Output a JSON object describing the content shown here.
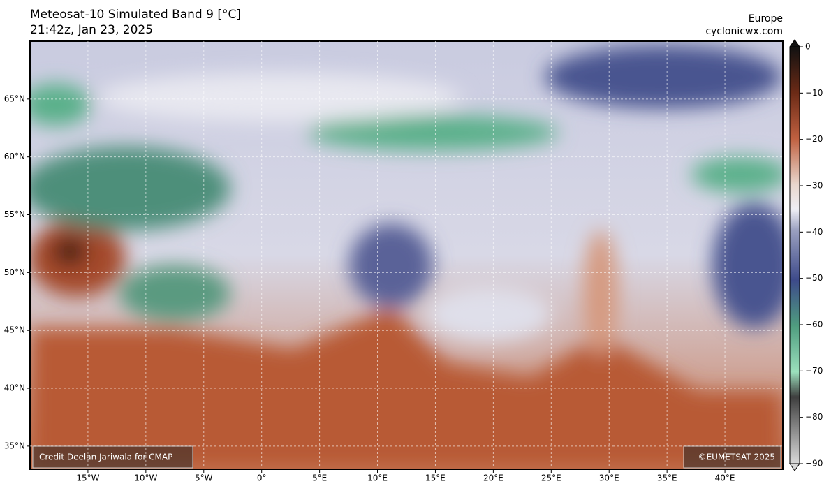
{
  "header": {
    "title": "Meteosat-10 Simulated Band 9 [°C]",
    "subtitle": "21:42z, Jan 23, 2025",
    "region": "Europe",
    "site": "cyclonicwx.com"
  },
  "map": {
    "xlim": [
      -20,
      45
    ],
    "ylim": [
      33,
      70
    ],
    "grid": true,
    "xticks": [
      {
        "value": -15,
        "label": "15°W"
      },
      {
        "value": -10,
        "label": "10°W"
      },
      {
        "value": -5,
        "label": "5°W"
      },
      {
        "value": 0,
        "label": "0°"
      },
      {
        "value": 5,
        "label": "5°E"
      },
      {
        "value": 10,
        "label": "10°E"
      },
      {
        "value": 15,
        "label": "15°E"
      },
      {
        "value": 20,
        "label": "20°E"
      },
      {
        "value": 25,
        "label": "25°E"
      },
      {
        "value": 30,
        "label": "30°E"
      },
      {
        "value": 35,
        "label": "35°E"
      },
      {
        "value": 40,
        "label": "40°E"
      }
    ],
    "yticks": [
      {
        "value": 35,
        "label": "35°N"
      },
      {
        "value": 40,
        "label": "40°N"
      },
      {
        "value": 45,
        "label": "45°N"
      },
      {
        "value": 50,
        "label": "50°N"
      },
      {
        "value": 55,
        "label": "55°N"
      },
      {
        "value": 60,
        "label": "60°N"
      },
      {
        "value": 65,
        "label": "65°N"
      }
    ]
  },
  "colorbar": {
    "lim": [
      -90,
      0
    ],
    "ticks": [
      0,
      {
        "value": -10,
        "label": "−10"
      },
      {
        "value": -20,
        "label": "−20"
      },
      {
        "value": -30,
        "label": "−30"
      },
      {
        "value": -40,
        "label": "−40"
      },
      {
        "value": -50,
        "label": "−50"
      },
      {
        "value": -60,
        "label": "−60"
      },
      {
        "value": -70,
        "label": "−70"
      },
      {
        "value": -80,
        "label": "−80"
      },
      {
        "value": -90,
        "label": "−90"
      }
    ]
  },
  "credits": {
    "left": "Credit Deelan Jariwala for CMAP",
    "right": "©EUMETSAT 2025"
  }
}
